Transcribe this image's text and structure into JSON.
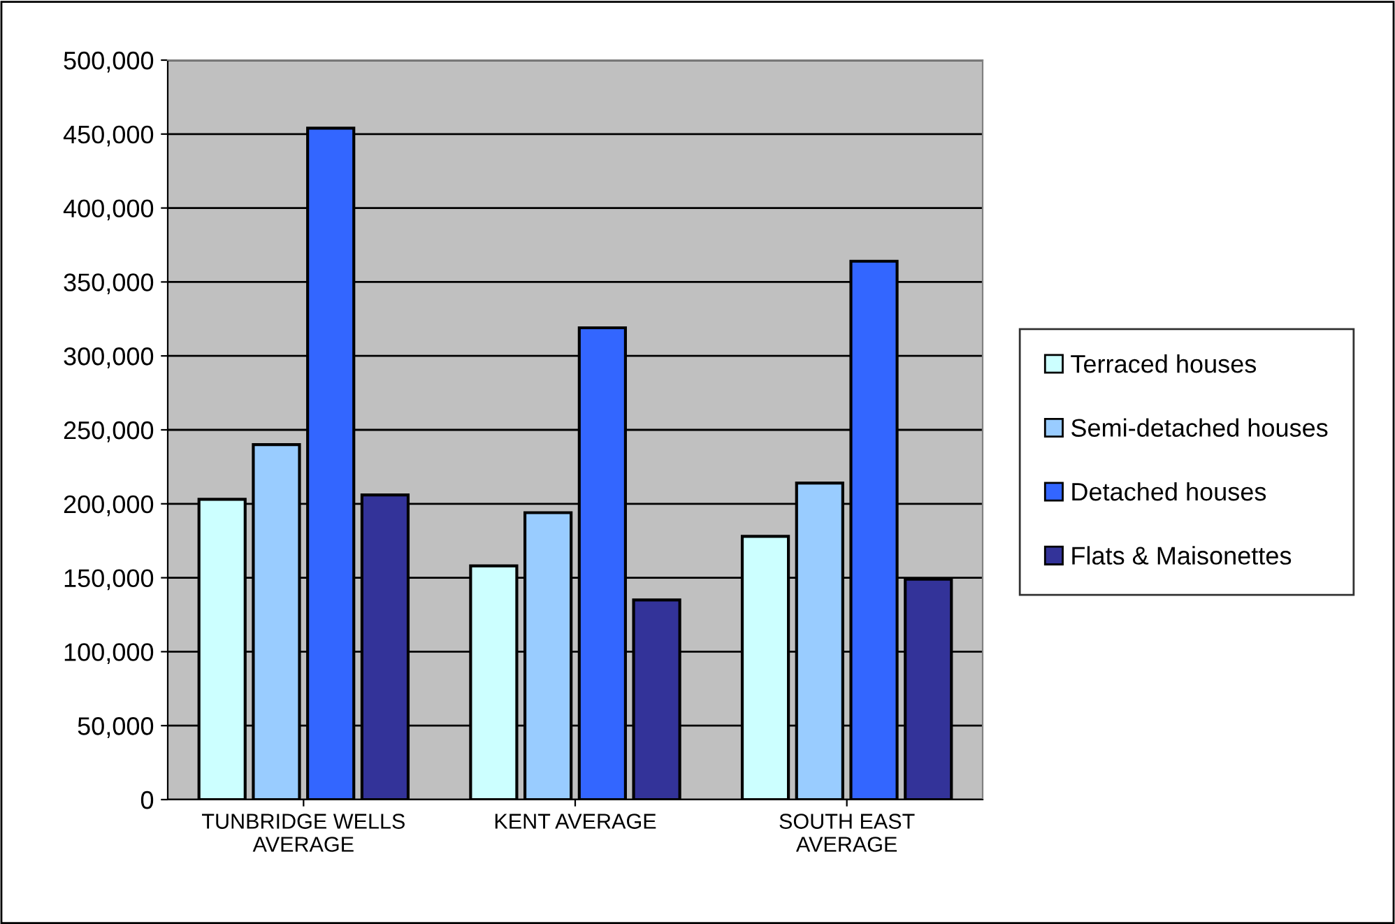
{
  "chart_data": {
    "type": "bar",
    "categories": [
      "TUNBRIDGE WELLS\nAVERAGE",
      "KENT AVERAGE",
      "SOUTH EAST\nAVERAGE"
    ],
    "series": [
      {
        "name": "Terraced houses",
        "color": "#ccffff",
        "values": [
          203000,
          158000,
          178000
        ]
      },
      {
        "name": "Semi-detached houses",
        "color": "#99ccff",
        "values": [
          240000,
          194000,
          214000
        ]
      },
      {
        "name": "Detached houses",
        "color": "#3366ff",
        "values": [
          454000,
          319000,
          364000
        ]
      },
      {
        "name": "Flats & Maisonettes",
        "color": "#333399",
        "values": [
          206000,
          135000,
          149000
        ]
      }
    ],
    "ylim": [
      0,
      500000
    ],
    "yticks": [
      {
        "value": 0,
        "label": "0"
      },
      {
        "value": 50000,
        "label": "50,000"
      },
      {
        "value": 100000,
        "label": "100,000"
      },
      {
        "value": 150000,
        "label": "150,000"
      },
      {
        "value": 200000,
        "label": "200,000"
      },
      {
        "value": 250000,
        "label": "250,000"
      },
      {
        "value": 300000,
        "label": "300,000"
      },
      {
        "value": 350000,
        "label": "350,000"
      },
      {
        "value": 400000,
        "label": "400,000"
      },
      {
        "value": 450000,
        "label": "450,000"
      },
      {
        "value": 500000,
        "label": "500,000"
      }
    ],
    "grid": "y",
    "legend": "right"
  }
}
